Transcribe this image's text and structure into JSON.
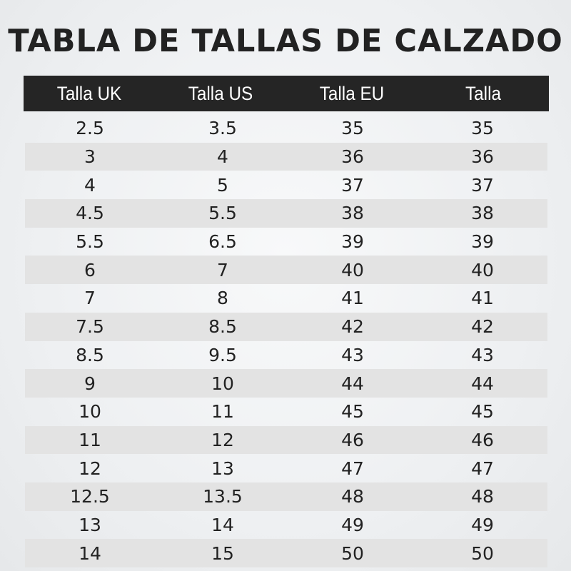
{
  "title": "TABLA DE TALLAS DE CALZADO",
  "table": {
    "headers": [
      "Talla UK",
      "Talla US",
      "Talla EU",
      "Talla"
    ],
    "rows": [
      [
        "2.5",
        "3.5",
        "35",
        "35"
      ],
      [
        "3",
        "4",
        "36",
        "36"
      ],
      [
        "4",
        "5",
        "37",
        "37"
      ],
      [
        "4.5",
        "5.5",
        "38",
        "38"
      ],
      [
        "5.5",
        "6.5",
        "39",
        "39"
      ],
      [
        "6",
        "7",
        "40",
        "40"
      ],
      [
        "7",
        "8",
        "41",
        "41"
      ],
      [
        "7.5",
        "8.5",
        "42",
        "42"
      ],
      [
        "8.5",
        "9.5",
        "43",
        "43"
      ],
      [
        "9",
        "10",
        "44",
        "44"
      ],
      [
        "10",
        "11",
        "45",
        "45"
      ],
      [
        "11",
        "12",
        "46",
        "46"
      ],
      [
        "12",
        "13",
        "47",
        "47"
      ],
      [
        "12.5",
        "13.5",
        "48",
        "48"
      ],
      [
        "13",
        "14",
        "49",
        "49"
      ],
      [
        "14",
        "15",
        "50",
        "50"
      ]
    ]
  },
  "colors": {
    "header_bg": "#252525",
    "header_text": "#ffffff",
    "stripe": "#e3e3e3",
    "text": "#222222"
  }
}
